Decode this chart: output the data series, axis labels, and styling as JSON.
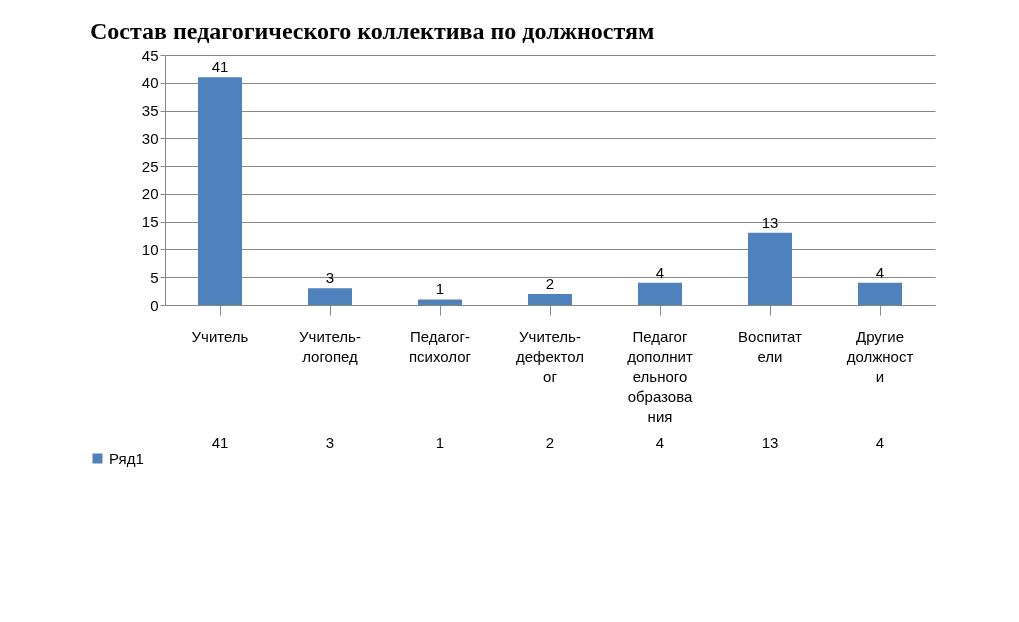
{
  "chart_data": {
    "type": "bar",
    "title": "Состав педагогического коллектива по должностям",
    "categories": [
      "Учитель",
      "Учитель-логопед",
      "Педагог-психолог",
      "Учитель-дефектолог",
      "Педагог дополнительного образования",
      "Воспитатели",
      "Другие должности"
    ],
    "series": [
      {
        "name": "Ряд1",
        "color": "#4f81bd",
        "values": [
          41,
          3,
          1,
          2,
          4,
          13,
          4
        ],
        "value_labels": [
          "41",
          "3",
          "1",
          "2",
          "4",
          "13",
          "4"
        ]
      }
    ],
    "ylim": [
      0,
      45
    ],
    "yticks": [
      0,
      5,
      10,
      15,
      20,
      25,
      30,
      35,
      40,
      45
    ],
    "grid": "y",
    "data_labels": true,
    "legend": "bottom left"
  }
}
